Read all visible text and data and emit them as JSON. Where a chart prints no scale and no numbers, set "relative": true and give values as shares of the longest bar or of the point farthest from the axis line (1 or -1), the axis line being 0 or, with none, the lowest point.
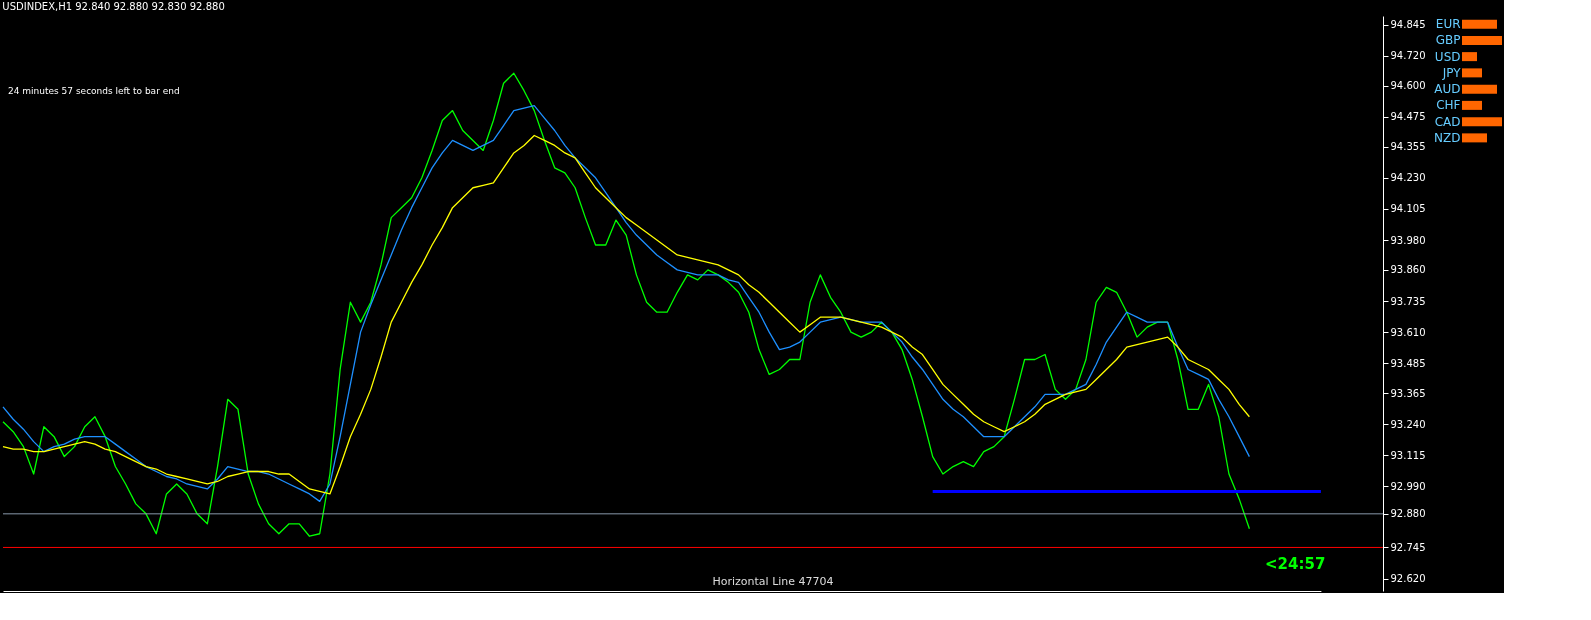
{
  "chart_data": [
    {
      "type": "line",
      "title": "USDINDEX,H1  92.840 92.880 92.830 92.880",
      "categories": [
        null,
        null,
        null,
        null,
        null,
        null,
        null,
        null,
        null,
        null,
        null,
        null,
        null,
        null,
        null,
        null,
        null,
        null,
        null,
        null,
        null,
        null,
        null,
        null,
        null,
        null,
        null,
        null,
        null,
        null,
        null,
        null,
        null,
        null,
        null,
        null,
        null,
        null,
        null,
        null,
        null,
        null,
        null,
        null,
        null,
        null,
        null,
        null,
        null,
        null,
        null,
        null,
        null,
        null,
        null,
        null,
        null,
        null,
        null,
        null,
        null,
        null,
        null,
        null,
        null,
        null,
        null,
        null,
        null,
        null,
        null,
        null,
        null,
        null,
        null,
        null,
        null,
        null,
        null,
        null,
        null,
        null,
        null,
        null,
        null,
        null,
        null,
        null,
        null,
        null,
        null,
        null,
        null,
        null,
        null,
        null,
        null,
        null,
        null,
        null,
        null,
        null,
        null,
        null,
        null,
        null,
        null,
        null,
        null,
        null,
        null,
        null,
        null,
        null,
        null,
        null,
        null,
        null,
        null,
        null,
        null,
        null,
        null,
        null,
        null,
        null,
        null,
        null,
        null,
        null
      ],
      "tick_labels": "y",
      "grid": false,
      "ylim": [
        92.57,
        94.88
      ],
      "yticks": [
        {
          "value": 94.845,
          "label": "94.845"
        },
        {
          "value": 94.72,
          "label": "94.720"
        },
        {
          "value": 94.6,
          "label": "94.600"
        },
        {
          "value": 94.475,
          "label": "94.475"
        },
        {
          "value": 94.355,
          "label": "94.355"
        },
        {
          "value": 94.23,
          "label": "94.230"
        },
        {
          "value": 94.105,
          "label": "94.105"
        },
        {
          "value": 93.98,
          "label": "93.980"
        },
        {
          "value": 93.86,
          "label": "93.860"
        },
        {
          "value": 93.735,
          "label": "93.735"
        },
        {
          "value": 93.61,
          "label": "93.610"
        },
        {
          "value": 93.485,
          "label": "93.485"
        },
        {
          "value": 93.365,
          "label": "93.365"
        },
        {
          "value": 93.24,
          "label": "93.240"
        },
        {
          "value": 93.115,
          "label": "93.115"
        },
        {
          "value": 92.99,
          "label": "92.990"
        },
        {
          "value": 92.88,
          "label": "92.880"
        },
        {
          "value": 92.745,
          "label": "92.745"
        },
        {
          "value": 92.62,
          "label": "92.620"
        }
      ],
      "series": [
        {
          "color": "#00ff00",
          "values": [
            93.25,
            93.21,
            93.15,
            93.04,
            93.23,
            93.19,
            93.11,
            93.15,
            93.23,
            93.27,
            93.19,
            93.07,
            93.0,
            92.92,
            92.88,
            92.8,
            92.96,
            93.0,
            92.96,
            92.88,
            92.84,
            93.07,
            93.34,
            93.3,
            93.04,
            92.92,
            92.84,
            92.8,
            92.84,
            92.84,
            92.79,
            92.8,
            93.04,
            93.46,
            93.73,
            93.65,
            93.73,
            93.88,
            94.07,
            94.11,
            94.15,
            94.23,
            94.34,
            94.46,
            94.5,
            94.42,
            94.38,
            94.34,
            94.46,
            94.61,
            94.65,
            94.58,
            94.5,
            94.38,
            94.27,
            94.25,
            94.19,
            94.07,
            93.96,
            93.96,
            94.06,
            94.0,
            93.84,
            93.73,
            93.69,
            93.69,
            93.77,
            93.84,
            93.82,
            93.86,
            93.84,
            93.81,
            93.77,
            93.69,
            93.54,
            93.44,
            93.46,
            93.5,
            93.5,
            93.73,
            93.84,
            93.75,
            93.69,
            93.61,
            93.59,
            93.61,
            93.65,
            93.61,
            93.54,
            93.42,
            93.27,
            93.11,
            93.04,
            93.07,
            93.09,
            93.07,
            93.13,
            93.15,
            93.19,
            93.34,
            93.5,
            93.5,
            93.52,
            93.38,
            93.34,
            93.38,
            93.5,
            93.73,
            93.79,
            93.77,
            93.69,
            93.59,
            93.63,
            93.65,
            93.65,
            93.5,
            93.3,
            93.3,
            93.4,
            93.27,
            93.04,
            92.94,
            92.82,
            null,
            null,
            null,
            null,
            null,
            null,
            null
          ]
        },
        {
          "color": "#1e90ff",
          "values": [
            93.31,
            93.26,
            93.22,
            93.17,
            93.13,
            93.15,
            93.16,
            93.18,
            93.19,
            93.19,
            93.19,
            93.16,
            93.13,
            93.1,
            93.07,
            93.05,
            93.03,
            93.02,
            93.0,
            92.99,
            92.98,
            93.02,
            93.07,
            93.06,
            93.05,
            93.05,
            93.04,
            93.02,
            93.0,
            92.98,
            92.96,
            92.93,
            93.0,
            93.19,
            93.4,
            93.61,
            93.72,
            93.82,
            93.92,
            94.02,
            94.11,
            94.19,
            94.27,
            94.33,
            94.38,
            94.36,
            94.34,
            94.36,
            94.38,
            94.44,
            94.5,
            94.51,
            94.52,
            94.47,
            94.42,
            94.36,
            94.31,
            94.27,
            94.23,
            94.17,
            94.11,
            94.05,
            94.0,
            93.96,
            93.92,
            93.89,
            93.86,
            93.85,
            93.84,
            93.84,
            93.84,
            93.82,
            93.81,
            93.75,
            93.69,
            93.61,
            93.54,
            93.55,
            93.57,
            93.61,
            93.65,
            93.66,
            93.67,
            93.66,
            93.65,
            93.65,
            93.65,
            93.61,
            93.57,
            93.51,
            93.46,
            93.4,
            93.34,
            93.3,
            93.27,
            93.23,
            93.19,
            93.19,
            93.19,
            93.23,
            93.27,
            93.31,
            93.36,
            93.36,
            93.36,
            93.38,
            93.4,
            93.48,
            93.57,
            93.63,
            93.69,
            93.67,
            93.65,
            93.65,
            93.65,
            93.55,
            93.46,
            93.44,
            93.42,
            93.34,
            93.27,
            93.19,
            93.11,
            null,
            null,
            null,
            null,
            null,
            null,
            null
          ]
        },
        {
          "color": "#ffff00",
          "values": [
            93.15,
            93.14,
            93.14,
            93.13,
            93.13,
            93.14,
            93.15,
            93.16,
            93.17,
            93.16,
            93.14,
            93.13,
            93.11,
            93.09,
            93.07,
            93.06,
            93.04,
            93.03,
            93.02,
            93.01,
            93.0,
            93.01,
            93.03,
            93.04,
            93.05,
            93.05,
            93.05,
            93.04,
            93.04,
            93.01,
            92.98,
            92.97,
            92.96,
            93.07,
            93.19,
            93.28,
            93.38,
            93.51,
            93.65,
            93.73,
            93.81,
            93.88,
            93.96,
            94.03,
            94.11,
            94.15,
            94.19,
            94.2,
            94.21,
            94.27,
            94.33,
            94.36,
            94.4,
            94.38,
            94.36,
            94.33,
            94.31,
            94.25,
            94.19,
            94.15,
            94.11,
            94.07,
            94.04,
            94.01,
            93.98,
            93.95,
            93.92,
            93.91,
            93.9,
            93.89,
            93.88,
            93.86,
            93.84,
            93.8,
            93.77,
            93.73,
            93.69,
            93.65,
            93.61,
            93.64,
            93.67,
            93.67,
            93.67,
            93.66,
            93.65,
            93.64,
            93.63,
            93.61,
            93.59,
            93.55,
            93.52,
            93.46,
            93.4,
            93.36,
            93.32,
            93.28,
            93.25,
            93.23,
            93.21,
            93.23,
            93.25,
            93.28,
            93.32,
            93.34,
            93.36,
            93.37,
            93.38,
            93.42,
            93.46,
            93.5,
            93.55,
            93.56,
            93.57,
            93.58,
            93.59,
            93.55,
            93.5,
            93.48,
            93.46,
            93.42,
            93.38,
            93.32,
            93.27,
            null,
            null,
            null,
            null,
            null,
            null,
            null
          ]
        },
        {
          "color": "#0000ff",
          "values": [
            null,
            null,
            null,
            null,
            null,
            null,
            null,
            null,
            null,
            null,
            null,
            null,
            null,
            null,
            null,
            null,
            null,
            null,
            null,
            null,
            null,
            null,
            null,
            null,
            null,
            null,
            null,
            null,
            null,
            null,
            null,
            null,
            null,
            null,
            null,
            null,
            null,
            null,
            null,
            null,
            null,
            null,
            null,
            null,
            null,
            null,
            null,
            null,
            null,
            null,
            null,
            null,
            null,
            null,
            null,
            null,
            null,
            null,
            null,
            null,
            null,
            null,
            null,
            null,
            null,
            null,
            null,
            null,
            null,
            null,
            null,
            null,
            null,
            null,
            null,
            null,
            null,
            null,
            null,
            null,
            null,
            null,
            null,
            null,
            null,
            null,
            null,
            null,
            null,
            null,
            null,
            92.97,
            92.97,
            92.97,
            92.97,
            92.97,
            92.97,
            92.97,
            92.97,
            92.97,
            92.97,
            92.97,
            92.97,
            92.97,
            92.97,
            92.97,
            92.97,
            92.97,
            92.97,
            92.97,
            92.97,
            92.97,
            92.97,
            92.97,
            92.97,
            92.97,
            92.97,
            92.97,
            92.97,
            92.97,
            92.97,
            92.97,
            92.97,
            92.97,
            92.97,
            92.97,
            92.97,
            92.97,
            92.97,
            92.97
          ]
        }
      ],
      "ref_lines": [
        {
          "axis": "y",
          "value": 92.88,
          "color": "#8899aa"
        },
        {
          "axis": "y",
          "value": 92.745,
          "color": "#ff0000"
        }
      ],
      "annotations": [
        "24 minutes 57 seconds left to bar end",
        "<24:57",
        "Horizontal Line 47704"
      ]
    },
    {
      "type": "bar",
      "orientation": "horizontal",
      "relative": true,
      "color": "#ff6600",
      "categories": [
        "EUR",
        "GBP",
        "USD",
        "JPY",
        "AUD",
        "CHF",
        "CAD",
        "NZD"
      ],
      "values": [
        0.875,
        1,
        0.375,
        0.5,
        0.875,
        0.5,
        1,
        0.625
      ]
    }
  ]
}
